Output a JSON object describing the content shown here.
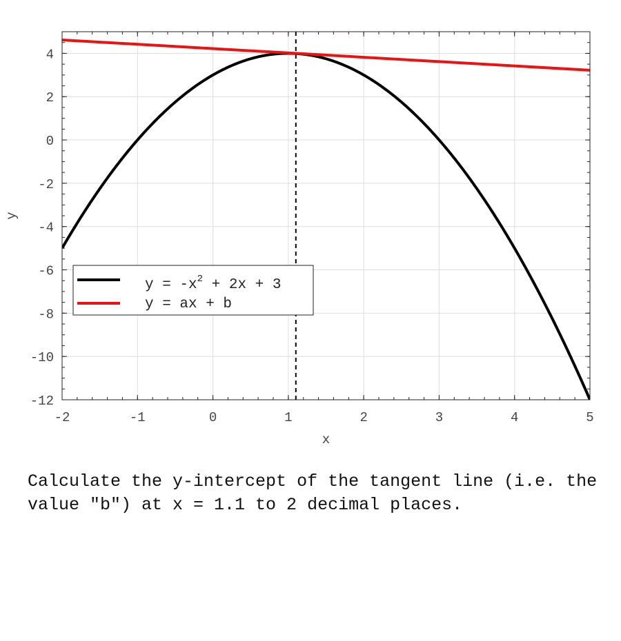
{
  "chart_data": {
    "type": "line",
    "xlabel": "x",
    "ylabel": "y",
    "xlim": [
      -2,
      5
    ],
    "ylim": [
      -12,
      5
    ],
    "xticks": [
      "-2",
      "-1",
      "0",
      "1",
      "2",
      "3",
      "4",
      "5"
    ],
    "yticks": [
      "-12",
      "-10",
      "-8",
      "-6",
      "-4",
      "-2",
      "0",
      "2",
      "4"
    ],
    "grid": true,
    "legend_position": "center-left",
    "series": [
      {
        "name": "y = -x^2 + 2x + 3",
        "name_parts": {
          "before": "y = -x",
          "sup": "2",
          "after": " + 2x + 3"
        },
        "color": "#000000",
        "coefficients": {
          "a": -1,
          "b": 2,
          "c": 3
        }
      },
      {
        "name": "y = ax + b",
        "color": "#ee1111",
        "points": [
          [
            -2,
            4.62
          ],
          [
            5,
            3.22
          ]
        ]
      }
    ],
    "annotations": [
      {
        "type": "vertical-dashed-line",
        "x": 1.1,
        "color": "#000000"
      }
    ]
  },
  "question": "Calculate the y-intercept of the tangent line (i.e. the value \"b\") at x = 1.1 to 2 decimal places."
}
